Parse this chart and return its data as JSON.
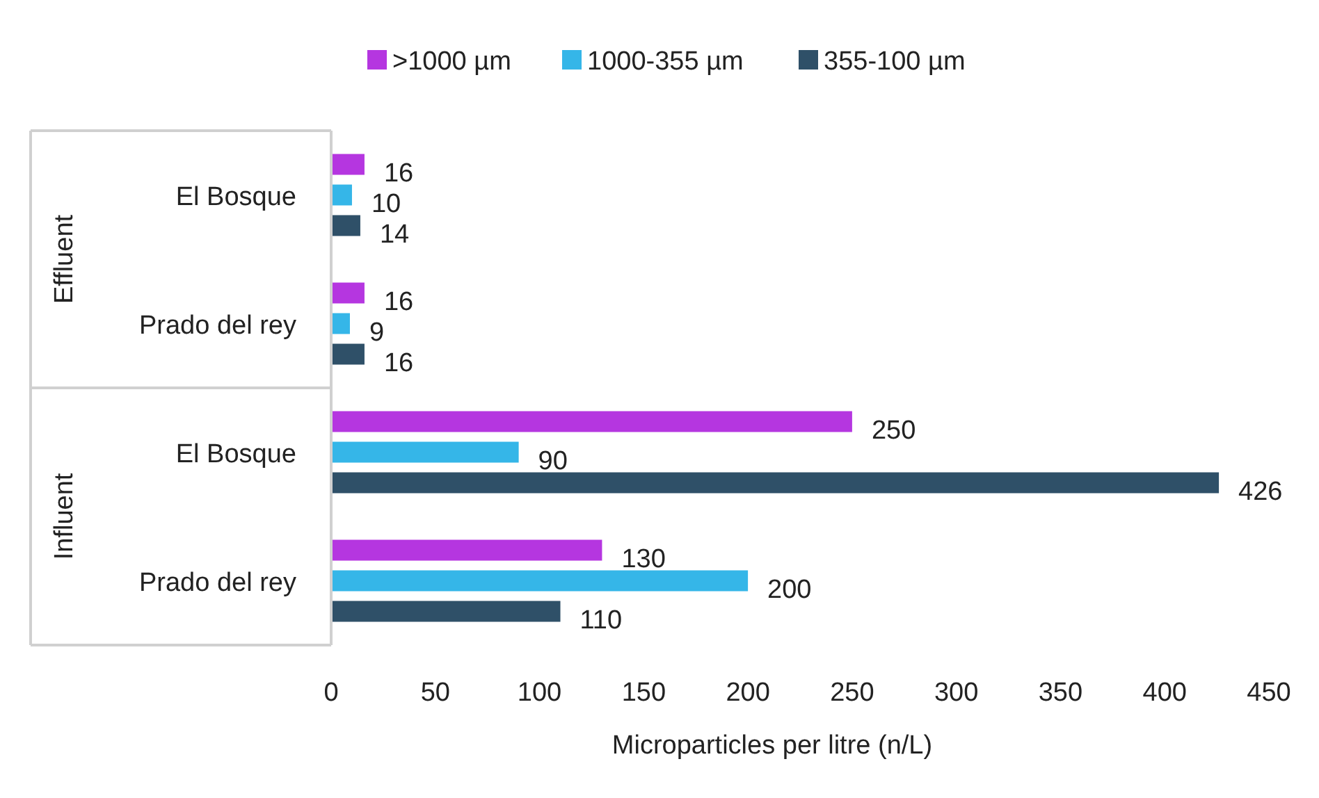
{
  "chart_data": {
    "type": "bar",
    "orientation": "horizontal",
    "xlabel": "Microparticles per litre (n/L)",
    "categories": [
      "El Bosque",
      "Prado del rey",
      "El Bosque",
      "Prado del rey"
    ],
    "annotations": [
      "Effluent",
      "Influent"
    ],
    "series": [
      {
        "name": ">1000 µm",
        "color": "#b536e0",
        "values": [
          16,
          16,
          250,
          130
        ]
      },
      {
        "name": "1000-355 µm",
        "color": "#35b6e8",
        "values": [
          10,
          9,
          90,
          200
        ]
      },
      {
        "name": "355-100 µm",
        "color": "#2f5068",
        "values": [
          14,
          16,
          426,
          110
        ]
      }
    ],
    "xlim": [
      0,
      450
    ],
    "xticks": [
      0,
      50,
      100,
      150,
      200,
      250,
      300,
      350,
      400,
      450
    ],
    "data_labels": true,
    "legend": "top"
  }
}
